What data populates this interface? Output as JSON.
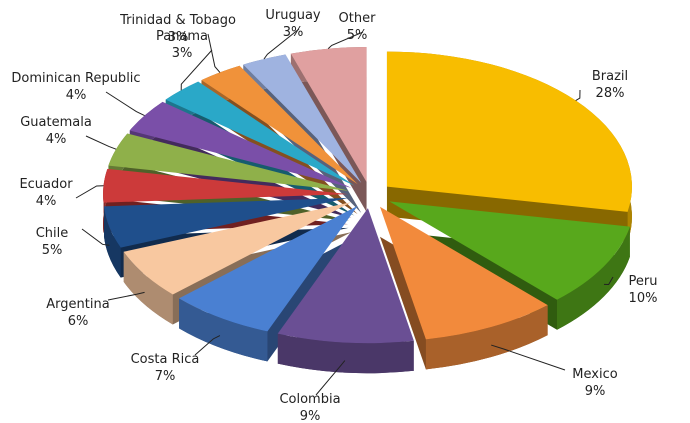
{
  "chart_data": {
    "type": "pie3d",
    "categories": [
      "Brazil",
      "Peru",
      "Mexico",
      "Colombia",
      "Costa Rica",
      "Argentina",
      "Chile",
      "Ecuador",
      "Guatemala",
      "Dominican Republic",
      "Panama",
      "Trinidad & Tobago",
      "Uruguay",
      "Other"
    ],
    "values": [
      28,
      10,
      9,
      9,
      7,
      6,
      5,
      4,
      4,
      4,
      3,
      3,
      3,
      5
    ],
    "value_labels": [
      "28%",
      "10%",
      "9%",
      "9%",
      "7%",
      "6%",
      "5%",
      "4%",
      "4%",
      "4%",
      "3%",
      "3%",
      "3%",
      "5%"
    ],
    "colors": [
      "#f8bd00",
      "#58a81c",
      "#f28a3c",
      "#6a4f94",
      "#4a80d2",
      "#f8c8a0",
      "#1f4f8c",
      "#cc3a3a",
      "#8fb04a",
      "#7a4fa8",
      "#2aa8c8",
      "#f0923a",
      "#9fb3e0",
      "#e0a0a0"
    ]
  }
}
